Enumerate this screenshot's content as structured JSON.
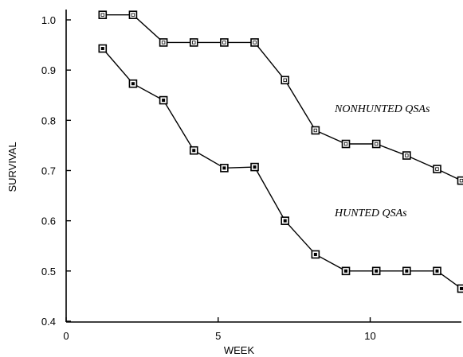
{
  "chart_data": {
    "type": "line",
    "title": "",
    "xlabel": "WEEK",
    "ylabel": "SURVIVAL",
    "xlim": [
      0,
      13
    ],
    "ylim": [
      0.4,
      1.02
    ],
    "x_ticks": [
      0,
      5,
      10
    ],
    "x_tick_labels": [
      "0",
      "5",
      "10"
    ],
    "y_ticks": [
      0.4,
      0.5,
      0.6,
      0.7,
      0.8,
      0.9,
      1.0
    ],
    "y_tick_labels": [
      "0.4",
      "0.5",
      "0.6",
      "0.7",
      "0.8",
      "0.9",
      "1.0"
    ],
    "grid": false,
    "legend": "none",
    "series": [
      {
        "name": "NONHUNTED QSAs",
        "marker": "hollow-square",
        "x": [
          1.2,
          2.2,
          3.2,
          4.2,
          5.2,
          6.2,
          7.2,
          8.2,
          9.2,
          10.2,
          11.2,
          12.2,
          13.0
        ],
        "values": [
          1.01,
          1.01,
          0.955,
          0.955,
          0.955,
          0.955,
          0.88,
          0.78,
          0.753,
          0.753,
          0.73,
          0.703,
          0.68
        ]
      },
      {
        "name": "HUNTED QSAs",
        "marker": "filled-square",
        "x": [
          1.2,
          2.2,
          3.2,
          4.2,
          5.2,
          6.2,
          7.2,
          8.2,
          9.2,
          10.2,
          11.2,
          12.2,
          13.0
        ],
        "values": [
          0.943,
          0.873,
          0.84,
          0.74,
          0.705,
          0.707,
          0.6,
          0.533,
          0.5,
          0.5,
          0.5,
          0.5,
          0.465
        ]
      }
    ]
  }
}
